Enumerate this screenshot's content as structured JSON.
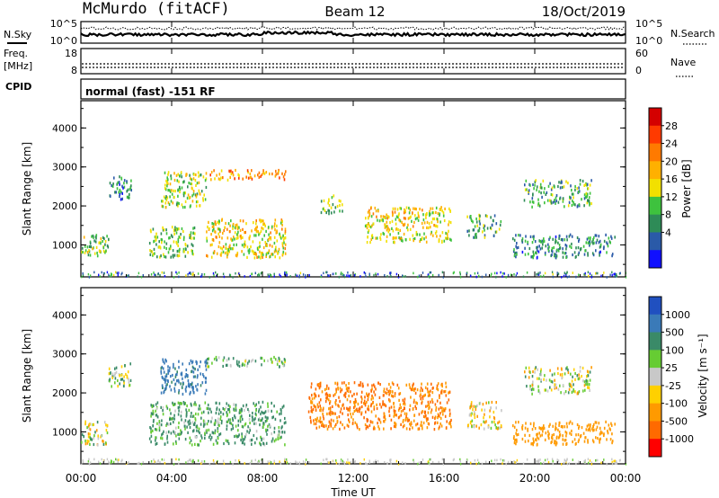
{
  "header": {
    "station": "McMurdo (fitACF)",
    "beam": "Beam 12",
    "date": "18/Oct/2019"
  },
  "sky_panel": {
    "left_label": "N.Sky",
    "right_label": "N.Search",
    "left_ticks": [
      "10^5",
      "10^0"
    ],
    "right_ticks": [
      "10^5",
      "10^0"
    ]
  },
  "freq_panel": {
    "left_label_line1": "Freq.",
    "left_label_line2": "[MHz]",
    "left_ticks": [
      "18",
      "8"
    ],
    "right_ticks": [
      "60",
      "0"
    ],
    "right_label": "Nave"
  },
  "cpid": {
    "label": "CPID",
    "text": "normal (fast) -151 RF"
  },
  "power_colorbar": {
    "label": "Power [dB]",
    "ticks": [
      "28",
      "24",
      "20",
      "16",
      "12",
      "8",
      "4"
    ],
    "colors": [
      "#d40000",
      "#ff3a00",
      "#ff7a00",
      "#ffb000",
      "#f2e000",
      "#3ec23e",
      "#2e8b57",
      "#2a5aa8",
      "#1010ff"
    ]
  },
  "velocity_colorbar": {
    "label": "Velocity [m s⁻¹]",
    "ticks": [
      "1000",
      "500",
      "100",
      "25",
      "-25",
      "-100",
      "-500",
      "-1000"
    ],
    "colors": [
      "#2050c0",
      "#3a7ab8",
      "#3a8a68",
      "#66cc33",
      "#c8c8c8",
      "#ffd000",
      "#ff9a00",
      "#ff6a00",
      "#ff0000"
    ]
  },
  "xaxis": {
    "label": "Time UT",
    "ticks": [
      "00:00",
      "04:00",
      "08:00",
      "12:00",
      "16:00",
      "20:00",
      "00:00"
    ]
  },
  "yaxis": {
    "label": "Slant Range [km]",
    "ticks": [
      "1000",
      "2000",
      "3000",
      "4000"
    ]
  },
  "chart_data": [
    {
      "type": "heatmap",
      "title": "Power",
      "xlabel": "Time UT",
      "ylabel": "Slant Range [km]",
      "xlim": [
        0,
        24
      ],
      "ylim": [
        180,
        4700
      ],
      "colorbar": {
        "label": "Power [dB]",
        "range": [
          0,
          30
        ]
      },
      "regions": [
        {
          "t": [
            0.0,
            1.2
          ],
          "r": [
            700,
            1300
          ],
          "value": 12
        },
        {
          "t": [
            1.2,
            2.2
          ],
          "r": [
            2200,
            2800
          ],
          "value": 8
        },
        {
          "t": [
            3.0,
            5.0
          ],
          "r": [
            700,
            1500
          ],
          "value": 12
        },
        {
          "t": [
            3.5,
            5.5
          ],
          "r": [
            2000,
            2900
          ],
          "value": 14
        },
        {
          "t": [
            5.5,
            9.0
          ],
          "r": [
            700,
            1700
          ],
          "value": 16
        },
        {
          "t": [
            5.5,
            9.0
          ],
          "r": [
            2700,
            2950
          ],
          "value": 20
        },
        {
          "t": [
            10.5,
            11.5
          ],
          "r": [
            1800,
            2300
          ],
          "value": 12
        },
        {
          "t": [
            12.5,
            16.3
          ],
          "r": [
            1100,
            2000
          ],
          "value": 16
        },
        {
          "t": [
            17.0,
            18.5
          ],
          "r": [
            1200,
            1800
          ],
          "value": 10
        },
        {
          "t": [
            19.5,
            22.5
          ],
          "r": [
            2000,
            2700
          ],
          "value": 10
        },
        {
          "t": [
            19.0,
            23.5
          ],
          "r": [
            700,
            1300
          ],
          "value": 8
        }
      ]
    },
    {
      "type": "heatmap",
      "title": "Velocity",
      "xlabel": "Time UT",
      "ylabel": "Slant Range [km]",
      "xlim": [
        0,
        24
      ],
      "ylim": [
        180,
        4700
      ],
      "colorbar": {
        "label": "Velocity [m s⁻¹]",
        "range": [
          -1000,
          1000
        ]
      },
      "regions": [
        {
          "t": [
            0.0,
            1.2
          ],
          "r": [
            700,
            1300
          ],
          "value": 0
        },
        {
          "t": [
            1.2,
            2.2
          ],
          "r": [
            2200,
            2800
          ],
          "value": 50
        },
        {
          "t": [
            3.0,
            9.0
          ],
          "r": [
            700,
            1800
          ],
          "value": 150
        },
        {
          "t": [
            3.5,
            5.5
          ],
          "r": [
            2000,
            2900
          ],
          "value": 600
        },
        {
          "t": [
            5.5,
            9.0
          ],
          "r": [
            2700,
            2950
          ],
          "value": 100
        },
        {
          "t": [
            10.0,
            16.3
          ],
          "r": [
            1100,
            2300
          ],
          "value": -500
        },
        {
          "t": [
            17.0,
            18.5
          ],
          "r": [
            1100,
            1800
          ],
          "value": -50
        },
        {
          "t": [
            19.5,
            22.5
          ],
          "r": [
            2000,
            2700
          ],
          "value": 0
        },
        {
          "t": [
            19.0,
            23.5
          ],
          "r": [
            700,
            1300
          ],
          "value": -300
        }
      ]
    }
  ]
}
